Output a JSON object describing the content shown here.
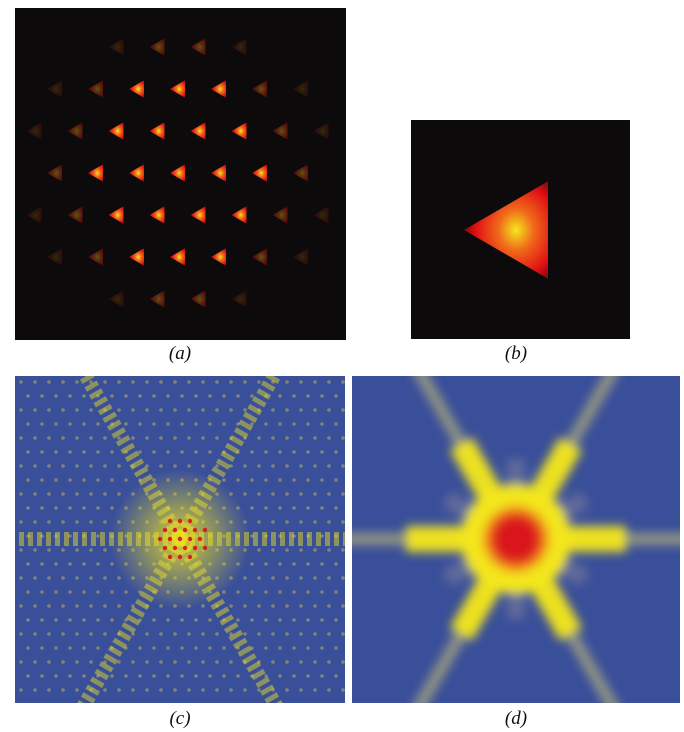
{
  "figure": {
    "panels": [
      {
        "id": "a",
        "caption": "(a)"
      },
      {
        "id": "b",
        "caption": "(b)"
      },
      {
        "id": "c",
        "caption": "(c)"
      },
      {
        "id": "d",
        "caption": "(d)"
      }
    ],
    "colors": {
      "background_dark": "#0c0a0a",
      "triangle_red": "#e00f14",
      "triangle_orange": "#f06a1a",
      "triangle_yellow": "#f5e61e",
      "diffraction_blue": "#3a4f9a",
      "diffraction_yellow": "#f3e61c",
      "diffraction_red": "#d8121c"
    }
  }
}
